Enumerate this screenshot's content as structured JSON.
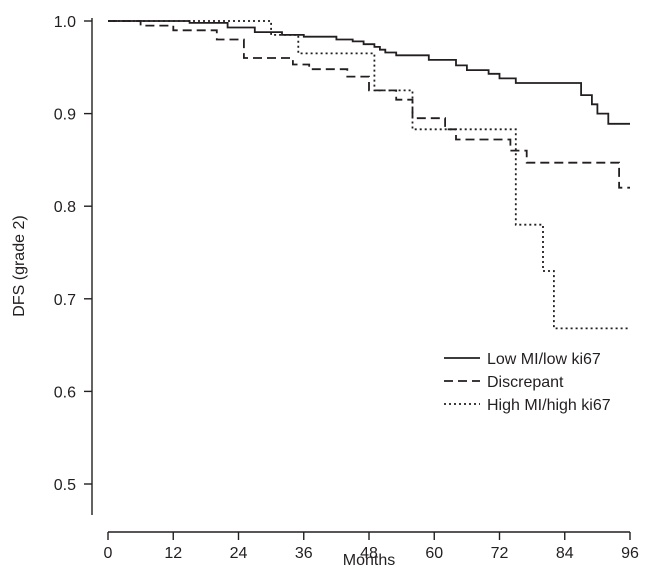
{
  "chart_data": {
    "type": "line",
    "title": "",
    "xlabel": "Months",
    "ylabel": "DFS (grade 2)",
    "xlim": [
      0,
      96
    ],
    "ylim": [
      0.5,
      1.0
    ],
    "x_ticks": [
      0,
      12,
      24,
      36,
      48,
      60,
      72,
      84,
      96
    ],
    "y_ticks": [
      0.5,
      0.6,
      0.7,
      0.8,
      0.9,
      1.0
    ],
    "x_tick_labels": [
      "0",
      "12",
      "24",
      "36",
      "48",
      "60",
      "72",
      "84",
      "96"
    ],
    "y_tick_labels": [
      "0.5",
      "0.6",
      "0.7",
      "0.8",
      "0.9",
      "1.0"
    ],
    "grid": false,
    "legend_position": "lower-right",
    "step": true,
    "series": [
      {
        "name": "Low MI/low ki67",
        "style": "solid",
        "x": [
          0,
          15,
          22,
          27,
          32,
          36,
          42,
          45,
          47,
          49,
          50,
          51,
          53,
          59,
          64,
          66,
          70,
          72,
          75,
          87,
          89,
          90,
          92,
          96
        ],
        "y": [
          1.0,
          0.998,
          0.993,
          0.988,
          0.985,
          0.983,
          0.98,
          0.978,
          0.975,
          0.972,
          0.969,
          0.966,
          0.963,
          0.958,
          0.952,
          0.947,
          0.943,
          0.938,
          0.933,
          0.92,
          0.91,
          0.9,
          0.889,
          0.889
        ]
      },
      {
        "name": "Discrepant",
        "style": "dashed",
        "x": [
          0,
          6,
          12,
          20,
          25,
          34,
          37,
          44,
          48,
          53,
          56,
          62,
          64,
          74,
          77,
          83,
          94,
          96
        ],
        "y": [
          1.0,
          0.995,
          0.99,
          0.98,
          0.96,
          0.953,
          0.948,
          0.94,
          0.925,
          0.915,
          0.895,
          0.883,
          0.872,
          0.86,
          0.847,
          0.847,
          0.82,
          0.82
        ]
      },
      {
        "name": "High MI/high ki67",
        "style": "dotted",
        "x": [
          0,
          30,
          35,
          49,
          56,
          75,
          80,
          82,
          96
        ],
        "y": [
          1.0,
          0.985,
          0.965,
          0.925,
          0.883,
          0.78,
          0.73,
          0.668,
          0.668
        ]
      }
    ]
  }
}
